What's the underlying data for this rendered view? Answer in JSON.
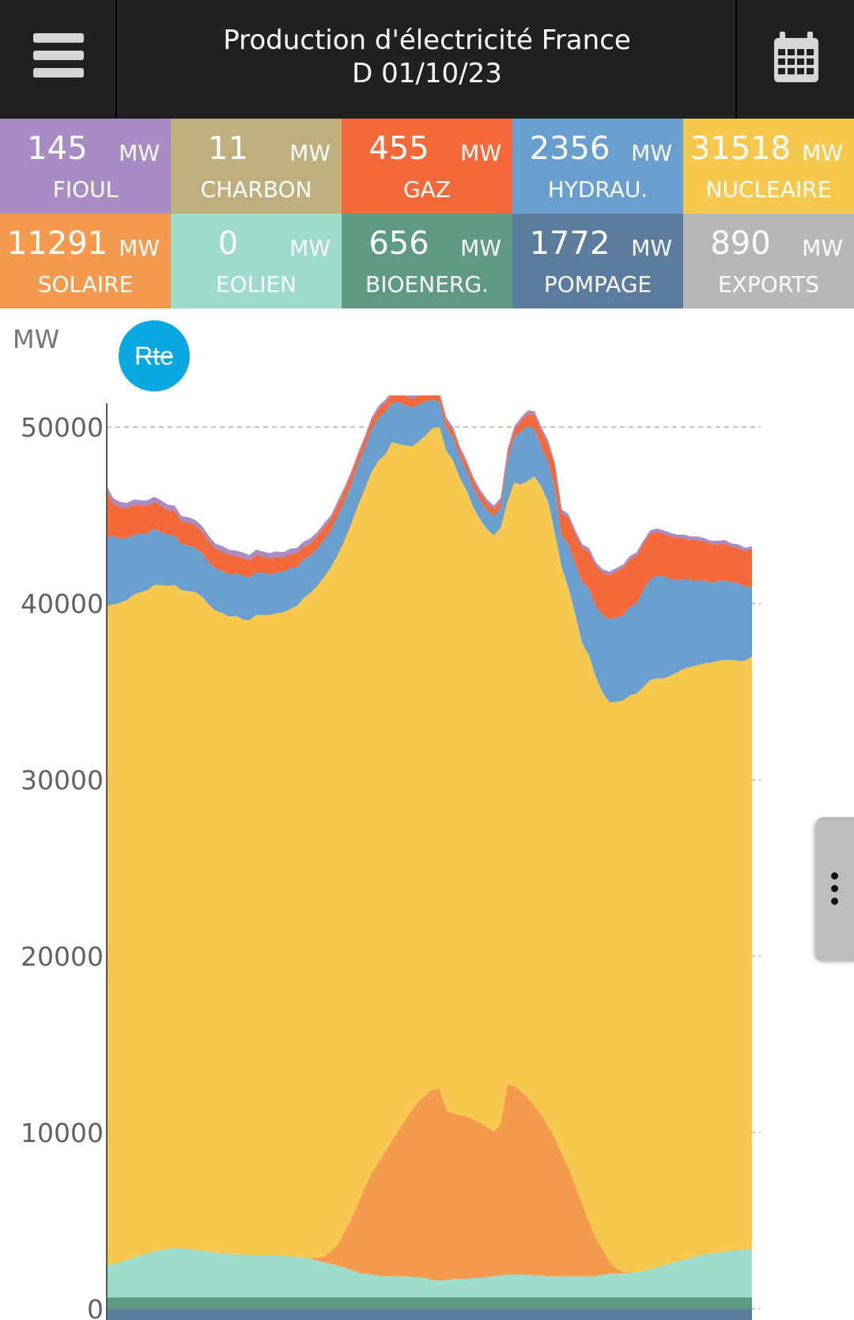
{
  "header": {
    "title_line1": "Production d'électricité France",
    "title_line2": "D 01/10/23",
    "menu_icon": "hamburger-menu-icon",
    "calendar_icon": "calendar-icon"
  },
  "tiles": [
    {
      "value": "145",
      "unit": "MW",
      "label": "FIOUL",
      "color": "#a98cc4"
    },
    {
      "value": "11",
      "unit": "MW",
      "label": "CHARBON",
      "color": "#bfae7e"
    },
    {
      "value": "455",
      "unit": "MW",
      "label": "GAZ",
      "color": "#f4693a"
    },
    {
      "value": "2356",
      "unit": "MW",
      "label": "HYDRAU.",
      "color": "#689fcf"
    },
    {
      "value": "31518",
      "unit": "MW",
      "label": "NUCLEAIRE",
      "color": "#f6c84d"
    },
    {
      "value": "11291",
      "unit": "MW",
      "label": "SOLAIRE",
      "color": "#f39a4f"
    },
    {
      "value": "0",
      "unit": "MW",
      "label": "EOLIEN",
      "color": "#9ddcca"
    },
    {
      "value": "656",
      "unit": "MW",
      "label": "BIOENERG.",
      "color": "#5f9a84"
    },
    {
      "value": "1772",
      "unit": "MW",
      "label": "POMPAGE",
      "color": "#5b7c9c"
    },
    {
      "value": "890",
      "unit": "MW",
      "label": "EXPORTS",
      "color": "#b7b7b7"
    }
  ],
  "chart": {
    "ylabel": "MW",
    "logo_text": "Rte",
    "logo_color": "#0aa8e0"
  },
  "chart_data": {
    "type": "area",
    "stacked": true,
    "title": "Production d'électricité France D 01/10/23",
    "ylabel": "MW",
    "ylim": [
      0,
      50000
    ],
    "yticks": [
      0,
      10000,
      20000,
      30000,
      40000,
      50000
    ],
    "grid": true,
    "x": [
      0,
      1,
      2,
      3,
      4,
      5,
      6,
      7,
      8,
      9,
      10,
      11,
      12,
      13,
      14,
      15,
      16,
      17,
      18,
      19,
      20,
      21,
      22,
      23,
      24,
      25,
      26,
      27,
      28,
      29,
      30,
      31,
      32,
      33,
      34,
      35,
      36,
      37,
      38,
      39,
      40,
      41,
      42,
      43,
      44,
      45,
      46,
      47,
      48,
      49,
      50,
      51,
      52,
      53,
      54,
      55,
      56,
      57,
      58,
      59,
      60,
      61,
      62,
      63,
      64,
      65,
      66,
      67,
      68,
      69,
      70,
      71,
      72,
      73,
      74,
      75,
      76,
      77,
      78,
      79,
      80,
      81,
      82,
      83,
      84,
      85,
      86,
      87,
      88,
      89,
      90,
      91,
      92,
      93,
      94,
      95
    ],
    "series": [
      {
        "name": "POMPAGE",
        "color": "#5b7c9c",
        "values": [
          -900,
          -900,
          -900,
          -900,
          -900,
          -900,
          -900,
          -900,
          -900,
          -900,
          -900,
          -900,
          -900,
          -900,
          -900,
          -900,
          -900,
          -900,
          -900,
          -900,
          -900,
          -900,
          -900,
          -900,
          -900,
          -900,
          -900,
          -900,
          -900,
          -900,
          -900,
          -900,
          -900,
          -900,
          -900,
          -900,
          -900,
          -900,
          -900,
          -900,
          -900,
          -900,
          -900,
          -900,
          -900,
          -900,
          -900,
          -900,
          -900,
          -900,
          -900,
          -900,
          -900,
          -900,
          -900,
          -900,
          -900,
          -900,
          -900,
          -900,
          -900,
          -900,
          -900,
          -900,
          -900,
          -900,
          -900,
          -900,
          -900,
          -900,
          -900,
          -900,
          -900,
          -900,
          -900,
          -900,
          -900,
          -900,
          -900,
          -900,
          -900,
          -900,
          -900,
          -900,
          -900,
          -900,
          -900,
          -900,
          -900,
          -900,
          -900,
          -900,
          -900,
          -900,
          -900,
          -900
        ]
      },
      {
        "name": "BIOENERG.",
        "color": "#5f9a84",
        "values": [
          650,
          650,
          650,
          650,
          650,
          650,
          650,
          650,
          650,
          650,
          650,
          650,
          650,
          650,
          650,
          650,
          650,
          650,
          650,
          650,
          650,
          650,
          650,
          650,
          650,
          650,
          650,
          650,
          650,
          650,
          650,
          650,
          650,
          650,
          650,
          650,
          650,
          650,
          650,
          650,
          650,
          650,
          650,
          650,
          650,
          650,
          650,
          650,
          650,
          650,
          650,
          650,
          650,
          650,
          650,
          650,
          650,
          650,
          650,
          650,
          650,
          650,
          650,
          650,
          650,
          650,
          650,
          650,
          650,
          650,
          650,
          650,
          650,
          650,
          650,
          650,
          650,
          650,
          650,
          650,
          650,
          650,
          650,
          650,
          650,
          650,
          650,
          650,
          650,
          650,
          650,
          650,
          650,
          650,
          650,
          650
        ]
      },
      {
        "name": "EOLIEN",
        "color": "#9ddcca",
        "values": [
          1800,
          1900,
          2000,
          2150,
          2250,
          2400,
          2500,
          2600,
          2700,
          2750,
          2800,
          2800,
          2750,
          2700,
          2650,
          2600,
          2550,
          2500,
          2500,
          2450,
          2450,
          2400,
          2400,
          2400,
          2400,
          2400,
          2350,
          2350,
          2300,
          2250,
          2200,
          2100,
          2000,
          1900,
          1800,
          1700,
          1550,
          1400,
          1350,
          1300,
          1250,
          1200,
          1200,
          1200,
          1200,
          1150,
          1150,
          1100,
          1000,
          950,
          1000,
          1050,
          1050,
          1050,
          1100,
          1100,
          1150,
          1200,
          1250,
          1300,
          1300,
          1300,
          1300,
          1250,
          1250,
          1200,
          1200,
          1200,
          1200,
          1200,
          1200,
          1200,
          1200,
          1300,
          1350,
          1350,
          1350,
          1400,
          1450,
          1500,
          1600,
          1700,
          1800,
          1950,
          2050,
          2150,
          2250,
          2350,
          2450,
          2500,
          2550,
          2600,
          2650,
          2700,
          2700,
          2750
        ]
      },
      {
        "name": "SOLAIRE",
        "color": "#f39a4f",
        "values": [
          0,
          0,
          0,
          0,
          0,
          0,
          0,
          0,
          0,
          0,
          0,
          0,
          0,
          0,
          0,
          0,
          0,
          0,
          0,
          0,
          0,
          0,
          0,
          0,
          0,
          0,
          0,
          0,
          0,
          10,
          50,
          150,
          350,
          700,
          1200,
          2000,
          2900,
          3900,
          4900,
          5700,
          6400,
          7100,
          7700,
          8300,
          8900,
          9500,
          10000,
          10400,
          10800,
          10900,
          9600,
          9400,
          9300,
          9200,
          9000,
          8800,
          8500,
          8200,
          8600,
          10800,
          10700,
          10400,
          10000,
          9600,
          9100,
          8500,
          7800,
          7000,
          6100,
          5100,
          4100,
          3100,
          2200,
          1400,
          700,
          300,
          100,
          30,
          0,
          0,
          0,
          0,
          0,
          0,
          0,
          0,
          0,
          0,
          0,
          0,
          0,
          0,
          0,
          0,
          0,
          0
        ]
      },
      {
        "name": "NUCLEAIRE",
        "color": "#f6c84d",
        "values": [
          37400,
          37400,
          37400,
          37400,
          37600,
          37600,
          37600,
          37800,
          37700,
          37600,
          37600,
          37300,
          37300,
          37300,
          37100,
          36700,
          36400,
          36300,
          36100,
          36200,
          36000,
          36000,
          36300,
          36300,
          36300,
          36400,
          36500,
          36700,
          36900,
          37400,
          37700,
          38100,
          38500,
          38800,
          39100,
          39200,
          39400,
          39600,
          39600,
          39800,
          39800,
          39500,
          39600,
          38900,
          38200,
          37600,
          37400,
          37400,
          37500,
          37500,
          37400,
          37000,
          36100,
          35500,
          34700,
          34200,
          33900,
          33800,
          33800,
          33000,
          34200,
          34400,
          35000,
          35700,
          35600,
          35400,
          34300,
          33200,
          32900,
          32400,
          31800,
          32100,
          31800,
          31600,
          31700,
          32100,
          32400,
          32700,
          32800,
          33100,
          33400,
          33400,
          33300,
          33300,
          33400,
          33500,
          33500,
          33500,
          33500,
          33500,
          33550,
          33550,
          33500,
          33400,
          33400,
          33600
        ]
      },
      {
        "name": "HYDRAU.",
        "color": "#689fcf",
        "values": [
          3900,
          3900,
          3600,
          3500,
          3400,
          3300,
          3200,
          3200,
          3000,
          2900,
          2800,
          2600,
          2600,
          2500,
          2500,
          2400,
          2400,
          2400,
          2400,
          2400,
          2500,
          2400,
          2400,
          2400,
          2300,
          2300,
          2300,
          2300,
          2200,
          2200,
          2100,
          2100,
          2100,
          2100,
          2200,
          2200,
          2200,
          2300,
          2300,
          2400,
          2400,
          2400,
          2200,
          2400,
          2300,
          2200,
          2100,
          1900,
          1600,
          1400,
          1300,
          1300,
          1200,
          1100,
          1100,
          1100,
          1100,
          1100,
          1100,
          2400,
          2600,
          3000,
          3100,
          2700,
          2300,
          2300,
          2600,
          1800,
          2500,
          2900,
          3500,
          3800,
          4000,
          4400,
          4700,
          4800,
          4800,
          5000,
          5100,
          5500,
          5700,
          5800,
          5800,
          5500,
          5200,
          5100,
          4900,
          4800,
          4700,
          4500,
          4500,
          4500,
          4400,
          4400,
          4200,
          3900
        ]
      },
      {
        "name": "GAZ",
        "color": "#f4693a",
        "values": [
          2600,
          1800,
          1800,
          1700,
          1700,
          1600,
          1600,
          1500,
          1500,
          1400,
          1400,
          1300,
          1300,
          1300,
          1200,
          1200,
          1100,
          1100,
          1100,
          1000,
          1000,
          1000,
          1000,
          900,
          900,
          900,
          800,
          800,
          800,
          700,
          700,
          700,
          700,
          600,
          600,
          600,
          600,
          500,
          500,
          500,
          500,
          500,
          500,
          500,
          500,
          500,
          500,
          500,
          400,
          400,
          400,
          400,
          400,
          400,
          400,
          400,
          400,
          400,
          400,
          400,
          400,
          600,
          700,
          800,
          900,
          1000,
          1200,
          1300,
          1500,
          1700,
          1900,
          2100,
          2300,
          2400,
          2500,
          2600,
          2700,
          2700,
          2700,
          2600,
          2600,
          2500,
          2400,
          2400,
          2400,
          2300,
          2300,
          2300,
          2200,
          2200,
          2100,
          2100,
          2000,
          2000,
          2000,
          2200
        ]
      },
      {
        "name": "FIOUL",
        "color": "#a98cc4",
        "values": [
          300,
          300,
          300,
          300,
          300,
          300,
          300,
          300,
          300,
          300,
          300,
          300,
          300,
          300,
          300,
          300,
          300,
          300,
          300,
          300,
          300,
          300,
          300,
          300,
          300,
          300,
          300,
          300,
          300,
          300,
          300,
          250,
          250,
          250,
          250,
          250,
          200,
          200,
          200,
          200,
          200,
          200,
          200,
          200,
          200,
          200,
          200,
          200,
          200,
          200,
          200,
          200,
          200,
          200,
          200,
          200,
          200,
          200,
          200,
          200,
          200,
          200,
          200,
          200,
          200,
          200,
          200,
          200,
          200,
          200,
          200,
          200,
          200,
          200,
          200,
          200,
          200,
          200,
          200,
          200,
          200,
          200,
          200,
          200,
          200,
          200,
          200,
          200,
          200,
          200,
          200,
          200,
          200,
          200,
          200,
          150
        ]
      }
    ]
  }
}
